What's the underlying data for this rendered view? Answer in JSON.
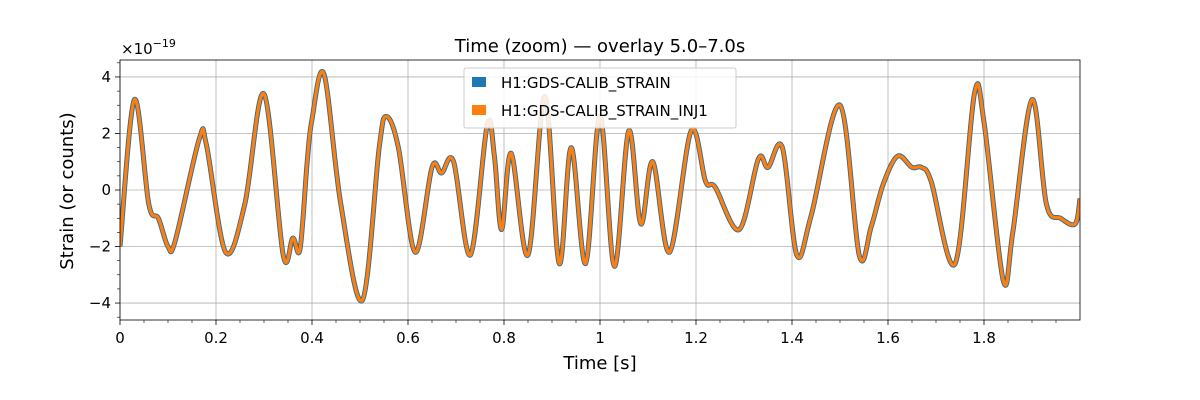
{
  "chart_data": {
    "type": "line",
    "title": "Time (zoom) — overlay 5.0–7.0s",
    "xlabel": "Time [s]",
    "ylabel": "Strain (or counts)",
    "y_multiplier": "×10",
    "y_multiplier_exponent": "−19",
    "xlim": [
      0,
      2.0
    ],
    "ylim": [
      -4.6,
      4.6
    ],
    "x_ticks": [
      0,
      0.2,
      0.4,
      0.6,
      0.8,
      1.0,
      1.2,
      1.4,
      1.6,
      1.8
    ],
    "x_tick_labels": [
      "0",
      "0.2",
      "0.4",
      "0.6",
      "0.8",
      "1",
      "1.2",
      "1.4",
      "1.6",
      "1.8"
    ],
    "y_ticks": [
      -4,
      -2,
      0,
      2,
      4
    ],
    "y_tick_labels": [
      "−4",
      "−2",
      "0",
      "2",
      "4"
    ],
    "grid": true,
    "legend_position": "top-center",
    "series": [
      {
        "name": "H1:GDS-CALIB_STRAIN",
        "color": "#1f77b4"
      },
      {
        "name": "H1:GDS-CALIB_STRAIN_INJ1",
        "color": "#ff7f0e"
      }
    ],
    "x": [
      0.0,
      0.03,
      0.06,
      0.08,
      0.1,
      0.115,
      0.165,
      0.18,
      0.22,
      0.26,
      0.3,
      0.34,
      0.36,
      0.375,
      0.39,
      0.4,
      0.425,
      0.46,
      0.505,
      0.54,
      0.555,
      0.58,
      0.615,
      0.65,
      0.67,
      0.695,
      0.73,
      0.765,
      0.78,
      0.795,
      0.815,
      0.85,
      0.885,
      0.915,
      0.94,
      0.97,
      1.0,
      1.03,
      1.06,
      1.085,
      1.11,
      1.145,
      1.19,
      1.22,
      1.24,
      1.29,
      1.33,
      1.35,
      1.38,
      1.41,
      1.44,
      1.5,
      1.54,
      1.565,
      1.59,
      1.62,
      1.65,
      1.67,
      1.69,
      1.74,
      1.78,
      1.8,
      1.84,
      1.86,
      1.9,
      1.93,
      1.96,
      1.99,
      2.0
    ],
    "values": [
      -2.0,
      3.2,
      -0.5,
      -1.0,
      -2.0,
      -1.8,
      1.8,
      1.6,
      -2.2,
      -0.5,
      3.4,
      -2.3,
      -1.7,
      -2.1,
      1.0,
      2.5,
      4.1,
      -0.5,
      -3.9,
      1.5,
      2.6,
      1.5,
      -2.2,
      0.8,
      0.6,
      1.0,
      -2.3,
      2.3,
      1.2,
      -1.4,
      1.3,
      -2.3,
      3.3,
      -2.6,
      1.5,
      -2.6,
      2.6,
      -2.7,
      2.1,
      -1.2,
      1.0,
      -2.2,
      2.1,
      0.3,
      0.1,
      -1.4,
      1.1,
      0.8,
      1.5,
      -2.3,
      -0.9,
      3.0,
      -2.3,
      -1.3,
      0.2,
      1.2,
      0.8,
      0.8,
      0.3,
      -2.6,
      3.4,
      2.4,
      -3.2,
      -1.5,
      3.2,
      -0.5,
      -1.0,
      -1.2,
      -0.3
    ]
  }
}
